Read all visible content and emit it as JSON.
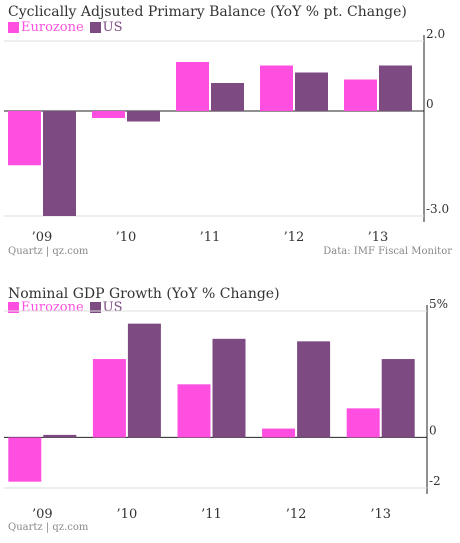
{
  "colors": {
    "eurozone": "#ff4fe0",
    "us": "#7e4a82",
    "axis": "#222222",
    "gridline": "#dddddd"
  },
  "chart_data": [
    {
      "type": "bar",
      "title": "Cyclically Adjsuted Primary Balance (YoY % pt. Change)",
      "categories": [
        "’09",
        "’10",
        "’11",
        "’12",
        "’13"
      ],
      "series": [
        {
          "name": "Eurozone",
          "values": [
            -1.55,
            -0.2,
            1.4,
            1.3,
            0.9
          ]
        },
        {
          "name": "US",
          "values": [
            -3.0,
            -0.3,
            0.8,
            1.1,
            1.3
          ]
        }
      ],
      "ylim": [
        -3.0,
        2.0
      ],
      "yticks": [
        {
          "value": 2.0,
          "label": "2.0"
        },
        {
          "value": 0,
          "label": "0"
        },
        {
          "value": -3.0,
          "label": "-3.0"
        }
      ],
      "legend": "top-left",
      "source_left": "Quartz | qz.com",
      "source_right": "Data: IMF Fiscal Monitor"
    },
    {
      "type": "bar",
      "title": "Nominal GDP Growth (YoY % Change)",
      "categories": [
        "’09",
        "’10",
        "’11",
        "’12",
        "’13"
      ],
      "series": [
        {
          "name": "Eurozone",
          "values": [
            -1.75,
            3.1,
            2.1,
            0.35,
            1.15
          ]
        },
        {
          "name": "US",
          "values": [
            0.1,
            4.5,
            3.9,
            3.8,
            3.1
          ]
        }
      ],
      "ylim": [
        -2,
        5
      ],
      "yticks": [
        {
          "value": 5,
          "label": "5%"
        },
        {
          "value": 0,
          "label": "0"
        },
        {
          "value": -2,
          "label": "-2"
        }
      ],
      "legend": "top-left",
      "source_left": "Quartz | qz.com"
    }
  ]
}
